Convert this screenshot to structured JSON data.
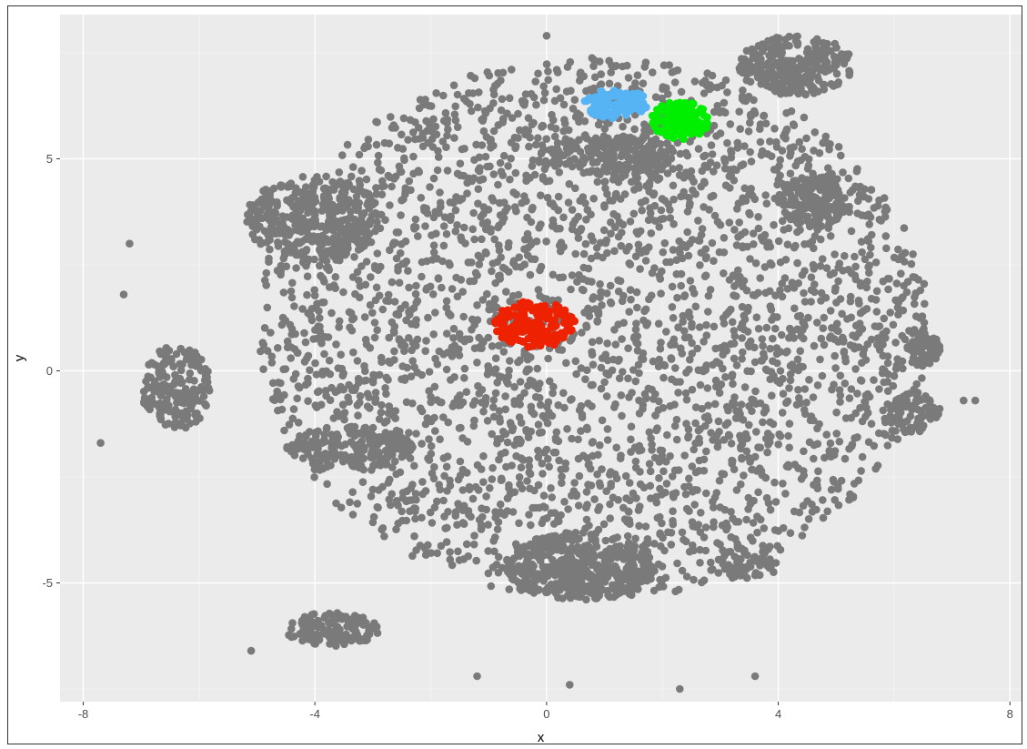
{
  "chart_data": {
    "type": "scatter",
    "title": "",
    "xlabel": "x",
    "ylabel": "y",
    "xlim": [
      -8.4,
      8.2
    ],
    "ylim": [
      -7.8,
      8.4
    ],
    "x_ticks": [
      -8,
      -4,
      0,
      4,
      8
    ],
    "y_ticks": [
      -5,
      0,
      5
    ],
    "x_tick_labels": [
      "-8",
      "-4",
      "0",
      "4",
      "8"
    ],
    "y_tick_labels": [
      "-5",
      "0",
      "5"
    ],
    "grid": true,
    "legend": "none",
    "series": [
      {
        "color": "#7a7a7a",
        "blobs": [
          {
            "cx": 0.8,
            "cy": 1.0,
            "rx": 5.8,
            "ry": 6.4,
            "n": 3200
          },
          {
            "cx": -4.0,
            "cy": 3.6,
            "rx": 1.2,
            "ry": 1.0,
            "n": 320
          },
          {
            "cx": -6.4,
            "cy": -0.4,
            "rx": 0.6,
            "ry": 1.0,
            "n": 180
          },
          {
            "cx": 0.6,
            "cy": -4.6,
            "rx": 1.3,
            "ry": 0.8,
            "n": 420
          },
          {
            "cx": 4.3,
            "cy": 7.2,
            "rx": 1.0,
            "ry": 0.7,
            "n": 260
          },
          {
            "cx": 4.6,
            "cy": 4.0,
            "rx": 0.6,
            "ry": 0.6,
            "n": 140
          },
          {
            "cx": -3.7,
            "cy": -6.1,
            "rx": 0.8,
            "ry": 0.4,
            "n": 140
          },
          {
            "cx": -3.4,
            "cy": -1.8,
            "rx": 1.1,
            "ry": 0.5,
            "n": 160
          },
          {
            "cx": 1.1,
            "cy": 5.1,
            "rx": 1.2,
            "ry": 0.5,
            "n": 150
          },
          {
            "cx": 6.3,
            "cy": -1.0,
            "rx": 0.5,
            "ry": 0.5,
            "n": 70
          },
          {
            "cx": 6.5,
            "cy": 0.5,
            "rx": 0.3,
            "ry": 0.4,
            "n": 50
          },
          {
            "cx": 3.4,
            "cy": -4.6,
            "rx": 0.6,
            "ry": 0.3,
            "n": 60
          }
        ],
        "outliers": [
          {
            "x": -7.7,
            "y": -1.7
          },
          {
            "x": -7.3,
            "y": 1.8
          },
          {
            "x": -7.2,
            "y": 3.0
          },
          {
            "x": -5.1,
            "y": -6.6
          },
          {
            "x": 7.2,
            "y": -0.7
          },
          {
            "x": 7.4,
            "y": -0.7
          },
          {
            "x": 0.4,
            "y": -7.4
          },
          {
            "x": 2.3,
            "y": -7.5
          },
          {
            "x": 3.6,
            "y": -7.2
          },
          {
            "x": -1.2,
            "y": -7.2
          },
          {
            "x": 0.0,
            "y": 7.9
          }
        ]
      },
      {
        "color": "#56b4f4",
        "blobs": [
          {
            "cx": 1.2,
            "cy": 6.3,
            "rx": 0.55,
            "ry": 0.35,
            "n": 110
          }
        ]
      },
      {
        "color": "#00ee00",
        "blobs": [
          {
            "cx": 2.3,
            "cy": 5.9,
            "rx": 0.5,
            "ry": 0.45,
            "n": 130
          }
        ]
      },
      {
        "color": "#ee2200",
        "blobs": [
          {
            "cx": -0.2,
            "cy": 1.1,
            "rx": 0.7,
            "ry": 0.55,
            "n": 170
          }
        ]
      }
    ],
    "colors": {
      "panel_background": "#ebebeb",
      "grid_major": "#ffffff",
      "tick_label": "#4d4d4d"
    }
  }
}
